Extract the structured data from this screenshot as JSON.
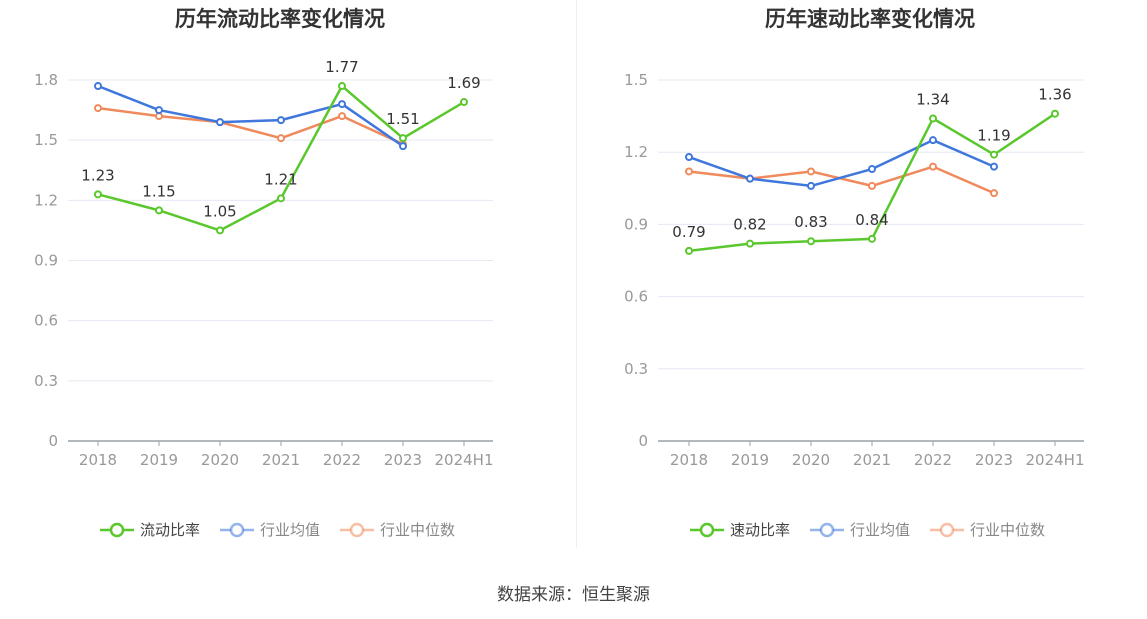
{
  "chart_data": [
    {
      "type": "line",
      "title": "历年流动比率变化情况",
      "categories": [
        "2018",
        "2019",
        "2020",
        "2021",
        "2022",
        "2023",
        "2024H1"
      ],
      "ylim": [
        0,
        1.8
      ],
      "yticks": [
        "0",
        "0.3",
        "0.6",
        "0.9",
        "1.2",
        "1.5",
        "1.8"
      ],
      "grid": true,
      "legend_position": "bottom",
      "series": [
        {
          "name": "流动比率",
          "color": "#5ac72c",
          "values": [
            1.23,
            1.15,
            1.05,
            1.21,
            1.77,
            1.51,
            1.69
          ],
          "labels": [
            "1.23",
            "1.15",
            "1.05",
            "1.21",
            "1.77",
            "1.51",
            "1.69"
          ]
        },
        {
          "name": "行业均值",
          "color": "#3f77dc",
          "values": [
            1.77,
            1.65,
            1.59,
            1.6,
            1.68,
            1.47,
            null
          ]
        },
        {
          "name": "行业中位数",
          "color": "#f08a5d",
          "values": [
            1.66,
            1.62,
            1.59,
            1.51,
            1.62,
            1.48,
            null
          ]
        }
      ]
    },
    {
      "type": "line",
      "title": "历年速动比率变化情况",
      "categories": [
        "2018",
        "2019",
        "2020",
        "2021",
        "2022",
        "2023",
        "2024H1"
      ],
      "ylim": [
        0,
        1.5
      ],
      "yticks": [
        "0",
        "0.3",
        "0.6",
        "0.9",
        "1.2",
        "1.5"
      ],
      "grid": true,
      "legend_position": "bottom",
      "series": [
        {
          "name": "速动比率",
          "color": "#5ac72c",
          "values": [
            0.79,
            0.82,
            0.83,
            0.84,
            1.34,
            1.19,
            1.36
          ],
          "labels": [
            "0.79",
            "0.82",
            "0.83",
            "0.84",
            "1.34",
            "1.19",
            "1.36"
          ]
        },
        {
          "name": "行业均值",
          "color": "#3f77dc",
          "values": [
            1.18,
            1.09,
            1.06,
            1.13,
            1.25,
            1.14,
            null
          ]
        },
        {
          "name": "行业中位数",
          "color": "#f08a5d",
          "values": [
            1.12,
            1.09,
            1.12,
            1.06,
            1.14,
            1.03,
            null
          ]
        }
      ]
    }
  ],
  "footer": {
    "source": "数据来源：恒生聚源"
  }
}
